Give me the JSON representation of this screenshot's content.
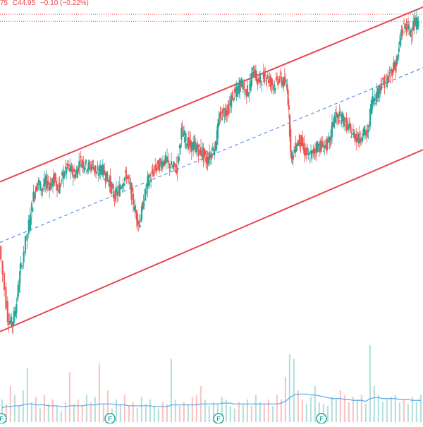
{
  "legend": {
    "open_tail": "75",
    "close_label": "C",
    "close_value": "44.95",
    "change": "−0.10 (−0.22%)"
  },
  "colors": {
    "up": "#26a69a",
    "down": "#ef5350",
    "channel": "#e8474f",
    "midline": "#5b8def",
    "volume_ma": "#5aa9e6",
    "price_line": "#e8474f"
  },
  "event_markers": [
    {
      "label": "F",
      "kind": "earnings-icon"
    },
    {
      "label": "F",
      "kind": "earnings-icon"
    },
    {
      "label": "F",
      "kind": "earnings-icon"
    },
    {
      "label": "F",
      "kind": "earnings-icon"
    }
  ],
  "chart_data": {
    "type": "candlestick",
    "price_series": [
      {
        "x": 0,
        "c": 43.2
      },
      {
        "x": 2,
        "c": 42.2
      },
      {
        "x": 3,
        "c": 42.1
      },
      {
        "x": 4,
        "c": 42.4
      },
      {
        "x": 5,
        "c": 42.9
      },
      {
        "x": 7,
        "c": 43.5
      },
      {
        "x": 8,
        "c": 43.9
      },
      {
        "x": 9,
        "c": 44.1
      },
      {
        "x": 10,
        "c": 44.0
      },
      {
        "x": 11,
        "c": 44.1
      },
      {
        "x": 12,
        "c": 44.05
      },
      {
        "x": 13,
        "c": 44.15
      },
      {
        "x": 14,
        "c": 44.0
      },
      {
        "x": 15,
        "c": 44.2
      },
      {
        "x": 16,
        "c": 44.3
      },
      {
        "x": 17,
        "c": 44.25
      },
      {
        "x": 18,
        "c": 44.2
      },
      {
        "x": 19,
        "c": 44.4
      },
      {
        "x": 20,
        "c": 44.35
      },
      {
        "x": 21,
        "c": 44.3
      },
      {
        "x": 22,
        "c": 44.35
      },
      {
        "x": 23,
        "c": 44.2
      },
      {
        "x": 24,
        "c": 44.3
      },
      {
        "x": 25,
        "c": 44.2
      },
      {
        "x": 26,
        "c": 44.1
      },
      {
        "x": 27,
        "c": 43.9
      },
      {
        "x": 28,
        "c": 43.95
      },
      {
        "x": 29,
        "c": 44.1
      },
      {
        "x": 30,
        "c": 44.2
      },
      {
        "x": 31,
        "c": 44.0
      },
      {
        "x": 32,
        "c": 43.7
      },
      {
        "x": 33,
        "c": 43.5
      },
      {
        "x": 34,
        "c": 43.8
      },
      {
        "x": 35,
        "c": 44.1
      },
      {
        "x": 36,
        "c": 44.2
      },
      {
        "x": 37,
        "c": 44.3
      },
      {
        "x": 38,
        "c": 44.35
      },
      {
        "x": 39,
        "c": 44.4
      },
      {
        "x": 40,
        "c": 44.35
      },
      {
        "x": 41,
        "c": 44.3
      },
      {
        "x": 42,
        "c": 44.3
      },
      {
        "x": 43,
        "c": 44.8
      },
      {
        "x": 44,
        "c": 44.7
      },
      {
        "x": 45,
        "c": 44.6
      },
      {
        "x": 46,
        "c": 44.6
      },
      {
        "x": 47,
        "c": 44.55
      },
      {
        "x": 48,
        "c": 44.5
      },
      {
        "x": 49,
        "c": 44.4
      },
      {
        "x": 50,
        "c": 44.5
      },
      {
        "x": 51,
        "c": 44.6
      },
      {
        "x": 52,
        "c": 45.0
      },
      {
        "x": 53,
        "c": 45.1
      },
      {
        "x": 54,
        "c": 45.1
      },
      {
        "x": 55,
        "c": 45.3
      },
      {
        "x": 56,
        "c": 45.35
      },
      {
        "x": 57,
        "c": 45.5
      },
      {
        "x": 58,
        "c": 45.35
      },
      {
        "x": 59,
        "c": 45.4
      },
      {
        "x": 60,
        "c": 45.7
      },
      {
        "x": 61,
        "c": 45.5
      },
      {
        "x": 62,
        "c": 45.55
      },
      {
        "x": 63,
        "c": 45.6
      },
      {
        "x": 64,
        "c": 45.5
      },
      {
        "x": 65,
        "c": 45.45
      },
      {
        "x": 66,
        "c": 45.55
      },
      {
        "x": 67,
        "c": 45.5
      },
      {
        "x": 68,
        "c": 45.45
      },
      {
        "x": 69,
        "c": 44.4
      },
      {
        "x": 70,
        "c": 44.6
      },
      {
        "x": 71,
        "c": 44.7
      },
      {
        "x": 72,
        "c": 44.55
      },
      {
        "x": 73,
        "c": 44.45
      },
      {
        "x": 74,
        "c": 44.5
      },
      {
        "x": 75,
        "c": 44.6
      },
      {
        "x": 76,
        "c": 44.6
      },
      {
        "x": 77,
        "c": 44.6
      },
      {
        "x": 78,
        "c": 44.65
      },
      {
        "x": 79,
        "c": 45.0
      },
      {
        "x": 80,
        "c": 45.0
      },
      {
        "x": 81,
        "c": 45.0
      },
      {
        "x": 82,
        "c": 44.9
      },
      {
        "x": 83,
        "c": 44.8
      },
      {
        "x": 84,
        "c": 44.75
      },
      {
        "x": 85,
        "c": 44.7
      },
      {
        "x": 86,
        "c": 44.8
      },
      {
        "x": 87,
        "c": 44.75
      },
      {
        "x": 88,
        "c": 45.25
      },
      {
        "x": 89,
        "c": 45.3
      },
      {
        "x": 90,
        "c": 45.45
      },
      {
        "x": 91,
        "c": 45.5
      },
      {
        "x": 92,
        "c": 45.55
      },
      {
        "x": 93,
        "c": 45.7
      },
      {
        "x": 94,
        "c": 45.8
      },
      {
        "x": 95,
        "c": 46.2
      },
      {
        "x": 96,
        "c": 46.3
      },
      {
        "x": 97,
        "c": 46.2
      },
      {
        "x": 98,
        "c": 46.3
      },
      {
        "x": 99,
        "c": 46.35
      }
    ],
    "channel": {
      "upper": [
        44.1,
        46.55
      ],
      "middle": [
        43.25,
        45.7
      ],
      "lower": [
        42.0,
        44.55
      ],
      "x_range": [
        0,
        100
      ]
    },
    "price_lines": [
      46.45,
      46.35
    ],
    "volume": [
      0.25,
      0.2,
      0.4,
      0.3,
      0.18,
      0.35,
      0.6,
      0.22,
      0.28,
      0.15,
      0.3,
      0.2,
      0.25,
      0.18,
      0.12,
      0.22,
      0.55,
      0.2,
      0.25,
      0.18,
      0.3,
      0.22,
      0.28,
      0.65,
      0.2,
      0.35,
      0.15,
      0.25,
      0.2,
      0.3,
      0.18,
      0.22,
      0.16,
      0.28,
      0.2,
      0.25,
      0.18,
      0.15,
      0.22,
      0.2,
      0.7,
      0.25,
      0.18,
      0.22,
      0.2,
      0.28,
      0.3,
      0.4,
      0.25,
      0.18,
      0.22,
      0.2,
      0.28,
      0.25,
      0.18,
      0.15,
      0.22,
      0.2,
      0.25,
      0.18,
      0.3,
      0.22,
      0.2,
      0.25,
      0.18,
      0.3,
      0.25,
      0.5,
      0.75,
      0.7,
      0.35,
      0.25,
      0.2,
      0.28,
      0.4,
      0.22,
      0.2,
      0.18,
      0.28,
      0.25,
      0.35,
      0.3,
      0.22,
      0.28,
      0.25,
      0.3,
      0.2,
      0.85,
      0.4,
      0.3,
      0.22,
      0.25,
      0.28,
      0.3,
      0.22,
      0.25,
      0.2,
      0.28,
      0.22,
      0.3
    ],
    "volume_ma": [
      0.16,
      0.17,
      0.17,
      0.18,
      0.18,
      0.19,
      0.2,
      0.2,
      0.19,
      0.19,
      0.19,
      0.18,
      0.18,
      0.18,
      0.17,
      0.17,
      0.18,
      0.18,
      0.18,
      0.18,
      0.19,
      0.19,
      0.19,
      0.2,
      0.2,
      0.2,
      0.2,
      0.19,
      0.19,
      0.19,
      0.18,
      0.18,
      0.18,
      0.18,
      0.18,
      0.18,
      0.17,
      0.17,
      0.17,
      0.17,
      0.19,
      0.19,
      0.19,
      0.19,
      0.19,
      0.19,
      0.19,
      0.2,
      0.2,
      0.2,
      0.2,
      0.2,
      0.21,
      0.21,
      0.21,
      0.2,
      0.2,
      0.2,
      0.2,
      0.2,
      0.2,
      0.2,
      0.2,
      0.2,
      0.2,
      0.2,
      0.21,
      0.23,
      0.27,
      0.3,
      0.31,
      0.31,
      0.31,
      0.3,
      0.3,
      0.29,
      0.28,
      0.27,
      0.26,
      0.26,
      0.26,
      0.25,
      0.25,
      0.24,
      0.24,
      0.24,
      0.23,
      0.26,
      0.27,
      0.27,
      0.26,
      0.26,
      0.26,
      0.26,
      0.25,
      0.25,
      0.25,
      0.24,
      0.24,
      0.24
    ],
    "ylim": [
      41.9,
      46.55
    ],
    "grid": false
  }
}
